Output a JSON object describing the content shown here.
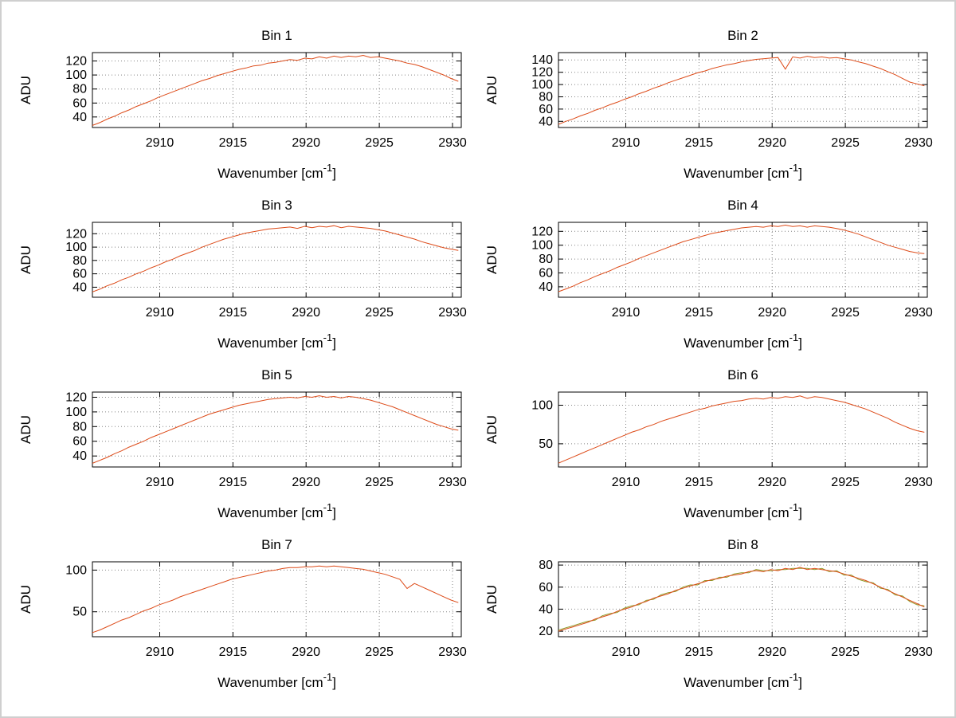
{
  "page": {
    "background": "#ffffff",
    "frame_color": "#cfcfcf"
  },
  "chart_defaults": {
    "line_color": "#dd4b19",
    "second_line_color": "#8f9a27",
    "grid_color": "#858585",
    "axis_color": "#000000",
    "text_color": "#000000",
    "xlabel": "Wavenumber [cm^-1]",
    "ylabel": "ADU",
    "grid": "on",
    "xticks": [
      2910,
      2915,
      2920,
      2925,
      2930
    ],
    "xlim": [
      2905.4,
      2930.6
    ],
    "x_start": 2905.4,
    "x_step": 0.5
  },
  "chart_data": [
    {
      "type": "line",
      "title": "Bin 1",
      "yticks": [
        40,
        60,
        80,
        100,
        120
      ],
      "ylim": [
        25,
        132
      ],
      "y": [
        28,
        32,
        37,
        41,
        46,
        50,
        55,
        59,
        63,
        68,
        72,
        76,
        80,
        84,
        88,
        92,
        95,
        99,
        102,
        105,
        108,
        110,
        113,
        114,
        117,
        118,
        120,
        122,
        121,
        124,
        123,
        126,
        124,
        127,
        125,
        127,
        126,
        128,
        125,
        126,
        124,
        122,
        120,
        117,
        115,
        112,
        108,
        104,
        100,
        95,
        91
      ]
    },
    {
      "type": "line",
      "title": "Bin 2",
      "yticks": [
        40,
        60,
        80,
        100,
        120,
        140
      ],
      "ylim": [
        30,
        152
      ],
      "y": [
        35,
        40,
        44,
        49,
        53,
        58,
        62,
        67,
        71,
        76,
        80,
        85,
        89,
        94,
        98,
        103,
        107,
        111,
        115,
        119,
        122,
        126,
        129,
        132,
        134,
        137,
        139,
        141,
        142,
        143,
        144,
        125,
        145,
        143,
        146,
        144,
        145,
        143,
        144,
        142,
        140,
        137,
        134,
        130,
        126,
        121,
        116,
        110,
        104,
        101,
        98
      ]
    },
    {
      "type": "line",
      "title": "Bin 3",
      "yticks": [
        40,
        60,
        80,
        100,
        120
      ],
      "ylim": [
        25,
        137
      ],
      "y": [
        33,
        37,
        42,
        46,
        51,
        55,
        60,
        64,
        69,
        73,
        78,
        82,
        87,
        91,
        95,
        100,
        104,
        108,
        112,
        115,
        118,
        121,
        123,
        125,
        127,
        128,
        129,
        130,
        128,
        131,
        129,
        131,
        130,
        132,
        129,
        131,
        130,
        129,
        128,
        126,
        124,
        121,
        118,
        115,
        112,
        108,
        105,
        102,
        99,
        97,
        95
      ]
    },
    {
      "type": "line",
      "title": "Bin 4",
      "yticks": [
        40,
        60,
        80,
        100,
        120
      ],
      "ylim": [
        25,
        133
      ],
      "y": [
        33,
        37,
        41,
        46,
        50,
        55,
        59,
        63,
        68,
        72,
        76,
        81,
        85,
        89,
        93,
        97,
        101,
        105,
        108,
        111,
        114,
        117,
        119,
        121,
        123,
        125,
        126,
        127,
        126,
        128,
        127,
        129,
        127,
        128,
        126,
        128,
        127,
        126,
        124,
        122,
        119,
        116,
        112,
        108,
        104,
        100,
        97,
        94,
        91,
        89,
        88
      ]
    },
    {
      "type": "line",
      "title": "Bin 5",
      "yticks": [
        40,
        60,
        80,
        100,
        120
      ],
      "ylim": [
        25,
        127
      ],
      "y": [
        30,
        34,
        38,
        43,
        47,
        52,
        56,
        60,
        65,
        69,
        73,
        77,
        81,
        85,
        89,
        93,
        97,
        100,
        103,
        106,
        109,
        111,
        113,
        115,
        117,
        118,
        119,
        120,
        119,
        121,
        120,
        122,
        120,
        121,
        119,
        121,
        120,
        118,
        116,
        113,
        110,
        107,
        103,
        99,
        95,
        91,
        87,
        83,
        80,
        77,
        75
      ]
    },
    {
      "type": "line",
      "title": "Bin 6",
      "yticks": [
        50,
        100
      ],
      "ylim": [
        20,
        117
      ],
      "y": [
        25,
        29,
        33,
        37,
        41,
        45,
        49,
        53,
        57,
        61,
        65,
        68,
        72,
        75,
        79,
        82,
        85,
        88,
        91,
        94,
        96,
        99,
        101,
        103,
        105,
        106,
        108,
        109,
        108,
        110,
        109,
        111,
        110,
        112,
        109,
        111,
        110,
        108,
        106,
        104,
        101,
        98,
        95,
        91,
        87,
        83,
        78,
        74,
        70,
        67,
        65
      ]
    },
    {
      "type": "line",
      "title": "Bin 7",
      "yticks": [
        50,
        100
      ],
      "ylim": [
        20,
        110
      ],
      "y": [
        25,
        28,
        32,
        36,
        40,
        43,
        47,
        51,
        54,
        58,
        61,
        64,
        68,
        71,
        74,
        77,
        80,
        83,
        86,
        89,
        91,
        93,
        95,
        97,
        99,
        100,
        102,
        103,
        103,
        104,
        104,
        105,
        104,
        105,
        104,
        103,
        102,
        101,
        99,
        97,
        95,
        92,
        89,
        78,
        84,
        80,
        76,
        72,
        68,
        64,
        61
      ]
    },
    {
      "type": "line",
      "title": "Bin 8",
      "yticks": [
        20,
        40,
        60,
        80
      ],
      "ylim": [
        15,
        83
      ],
      "y": [
        20,
        22,
        24,
        26,
        28,
        31,
        33,
        35,
        38,
        40,
        42,
        45,
        47,
        50,
        52,
        54,
        57,
        59,
        61,
        63,
        65,
        67,
        68,
        70,
        71,
        72,
        74,
        75,
        74,
        76,
        75,
        77,
        76,
        78,
        76,
        77,
        76,
        75,
        74,
        72,
        70,
        68,
        66,
        63,
        60,
        57,
        54,
        51,
        48,
        45,
        42
      ],
      "y2": [
        21,
        23,
        25,
        27,
        29,
        30,
        34,
        36,
        37,
        41,
        43,
        44,
        48,
        49,
        53,
        55,
        56,
        60,
        62,
        62,
        66,
        66,
        69,
        69,
        72,
        73,
        73,
        76,
        75,
        75,
        76,
        76,
        77,
        77,
        77,
        76,
        77,
        74,
        75,
        71,
        71,
        67,
        65,
        64,
        59,
        58,
        53,
        52,
        47,
        44,
        43
      ]
    }
  ]
}
